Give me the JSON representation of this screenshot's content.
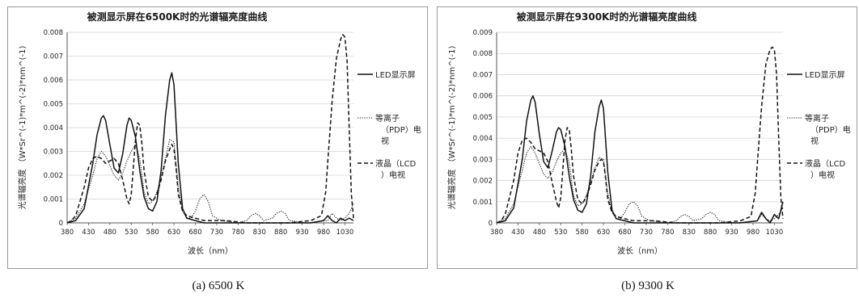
{
  "chart_data": [
    {
      "type": "line",
      "title": "被测显示屏在6500K时的光谱辐亮度曲线",
      "caption": "(a) 6500 K",
      "xlabel": "波长（nm）",
      "ylabel": "光谱辐亮度 （W*Sr^(-1)*m^(-2)*nm^(-1)",
      "xlim": [
        380,
        1050
      ],
      "ylim": [
        0,
        0.008
      ],
      "x_ticks": [
        "380",
        "430",
        "480",
        "530",
        "580",
        "630",
        "680",
        "730",
        "780",
        "830",
        "880",
        "930",
        "980",
        "1030"
      ],
      "y_ticks": [
        "0",
        "0.001",
        "0.002",
        "0.003",
        "0.004",
        "0.005",
        "0.006",
        "0.007",
        "0.008"
      ],
      "grid": "horizontal",
      "legend_position": "right",
      "series": [
        {
          "name": "LED显示屏",
          "style": "solid",
          "x": [
            380,
            400,
            420,
            440,
            450,
            460,
            465,
            470,
            480,
            490,
            500,
            510,
            520,
            525,
            530,
            540,
            550,
            560,
            570,
            580,
            590,
            600,
            610,
            620,
            625,
            630,
            640,
            650,
            660,
            680,
            700,
            750,
            800,
            850,
            900,
            950,
            980,
            990,
            1000,
            1010,
            1020,
            1030,
            1040,
            1050
          ],
          "y": [
            0,
            0.0001,
            0.0006,
            0.0025,
            0.0037,
            0.0044,
            0.0045,
            0.0043,
            0.0033,
            0.0023,
            0.0021,
            0.0029,
            0.0041,
            0.0044,
            0.0043,
            0.0036,
            0.0022,
            0.0011,
            0.0006,
            0.0005,
            0.0009,
            0.0022,
            0.0045,
            0.006,
            0.0063,
            0.0058,
            0.0025,
            0.0006,
            0.0002,
            0.0001,
            0,
            0,
            0,
            0,
            0,
            0,
            0.0001,
            0.0003,
            0.0001,
            0,
            0.0002,
            0.0001,
            0.0002,
            0.0001
          ]
        },
        {
          "name": "等离子（PDP）电视",
          "style": "dotted",
          "x": [
            380,
            400,
            420,
            440,
            450,
            460,
            470,
            480,
            490,
            500,
            510,
            520,
            530,
            540,
            550,
            560,
            570,
            580,
            590,
            600,
            610,
            620,
            630,
            640,
            650,
            660,
            670,
            680,
            690,
            700,
            710,
            720,
            740,
            780,
            800,
            810,
            820,
            830,
            840,
            860,
            870,
            880,
            890,
            900,
            940,
            990,
            1000,
            1010,
            1020,
            1030,
            1040,
            1050
          ],
          "y": [
            0,
            0.0002,
            0.0008,
            0.002,
            0.0027,
            0.003,
            0.0028,
            0.0024,
            0.002,
            0.0018,
            0.0021,
            0.0026,
            0.003,
            0.0033,
            0.0027,
            0.0013,
            0.0008,
            0.0009,
            0.0013,
            0.0019,
            0.0027,
            0.0035,
            0.0034,
            0.0015,
            0.0005,
            0.0002,
            0.0002,
            0.0005,
            0.001,
            0.0012,
            0.0009,
            0.0003,
            0.0001,
            0,
            0.0001,
            0.0003,
            0.0004,
            0.0003,
            0.0001,
            0.0002,
            0.0004,
            0.0005,
            0.0004,
            0.0001,
            0,
            0.0001,
            0.0004,
            0.0002,
            0.0001,
            0.0002,
            0.0004,
            0.0008
          ]
        },
        {
          "name": "液晶（LCD）电视",
          "style": "dashed",
          "x": [
            380,
            390,
            400,
            420,
            430,
            440,
            450,
            460,
            470,
            480,
            490,
            500,
            510,
            520,
            525,
            530,
            540,
            545,
            550,
            555,
            560,
            570,
            580,
            590,
            600,
            610,
            620,
            625,
            630,
            635,
            640,
            650,
            660,
            680,
            700,
            750,
            800,
            850,
            900,
            950,
            975,
            985,
            990,
            1000,
            1010,
            1020,
            1025,
            1030,
            1035,
            1040,
            1045,
            1050
          ],
          "y": [
            0,
            0.0001,
            0.0003,
            0.0015,
            0.0023,
            0.0027,
            0.0028,
            0.0027,
            0.0025,
            0.0026,
            0.0027,
            0.0025,
            0.0018,
            0.001,
            0.0008,
            0.0012,
            0.0035,
            0.0042,
            0.0041,
            0.0033,
            0.0022,
            0.0011,
            0.0009,
            0.0012,
            0.0018,
            0.0026,
            0.0031,
            0.0033,
            0.0031,
            0.0023,
            0.0012,
            0.0005,
            0.0003,
            0.0002,
            0.0001,
            0.0001,
            0,
            0,
            0,
            0.0001,
            0.0003,
            0.0013,
            0.0026,
            0.0051,
            0.0069,
            0.0077,
            0.0079,
            0.0078,
            0.0068,
            0.004,
            0.0012,
            0.0002
          ]
        }
      ]
    },
    {
      "type": "line",
      "title": "被测显示屏在9300K时的光谱辐亮度曲线",
      "caption": "(b) 9300 K",
      "xlabel": "波长（nm）",
      "ylabel": "光谱辐亮度 （W*Sr^(-1)*m^(-2)*nm^(-1)",
      "xlim": [
        380,
        1050
      ],
      "ylim": [
        0,
        0.009
      ],
      "x_ticks": [
        "380",
        "430",
        "480",
        "530",
        "580",
        "630",
        "680",
        "730",
        "780",
        "830",
        "880",
        "930",
        "980",
        "1030"
      ],
      "y_ticks": [
        "0",
        "0.001",
        "0.002",
        "0.003",
        "0.004",
        "0.005",
        "0.006",
        "0.007",
        "0.008",
        "0.009"
      ],
      "grid": "horizontal",
      "legend_position": "right",
      "series": [
        {
          "name": "LED显示屏",
          "style": "solid",
          "x": [
            380,
            400,
            420,
            440,
            450,
            460,
            465,
            470,
            480,
            490,
            500,
            510,
            520,
            525,
            530,
            540,
            550,
            560,
            570,
            580,
            590,
            600,
            610,
            620,
            625,
            630,
            640,
            650,
            660,
            680,
            700,
            750,
            800,
            850,
            900,
            950,
            990,
            1000,
            1010,
            1020,
            1030,
            1040,
            1050
          ],
          "y": [
            0,
            0.0001,
            0.0007,
            0.003,
            0.0048,
            0.0058,
            0.006,
            0.0057,
            0.0042,
            0.0029,
            0.0026,
            0.0034,
            0.0043,
            0.0045,
            0.0044,
            0.0036,
            0.0022,
            0.0011,
            0.0006,
            0.0005,
            0.0009,
            0.0022,
            0.0043,
            0.0055,
            0.0058,
            0.0054,
            0.0024,
            0.0006,
            0.0002,
            0.0001,
            0,
            0,
            0,
            0,
            0,
            0,
            0.0001,
            0.0005,
            0.0002,
            0,
            0.0004,
            0.0002,
            0.001
          ]
        },
        {
          "name": "等离子（PDP）电视",
          "style": "dotted",
          "x": [
            380,
            400,
            420,
            440,
            450,
            460,
            470,
            480,
            490,
            500,
            510,
            520,
            530,
            540,
            550,
            560,
            570,
            580,
            590,
            600,
            610,
            620,
            630,
            640,
            650,
            660,
            670,
            680,
            690,
            700,
            710,
            720,
            740,
            780,
            800,
            810,
            820,
            830,
            840,
            860,
            870,
            880,
            890,
            900,
            940,
            990,
            1000,
            1010,
            1020,
            1030,
            1040,
            1050
          ],
          "y": [
            0,
            0.0002,
            0.0009,
            0.0025,
            0.0033,
            0.0036,
            0.0033,
            0.0028,
            0.0023,
            0.0021,
            0.0024,
            0.0029,
            0.0033,
            0.0035,
            0.0028,
            0.0013,
            0.0008,
            0.0009,
            0.0013,
            0.0019,
            0.0026,
            0.0031,
            0.003,
            0.0014,
            0.0005,
            0.0002,
            0.0002,
            0.0005,
            0.0009,
            0.001,
            0.0008,
            0.0003,
            0.0001,
            0,
            0.0001,
            0.0003,
            0.0004,
            0.0003,
            0.0001,
            0.0002,
            0.0004,
            0.0005,
            0.0004,
            0.0001,
            0,
            0.0001,
            0.0004,
            0.0002,
            0.0001,
            0.0002,
            0.0004,
            0.0007
          ]
        },
        {
          "name": "液晶（LCD）电视",
          "style": "dashed",
          "x": [
            380,
            390,
            400,
            420,
            430,
            440,
            450,
            460,
            470,
            480,
            490,
            500,
            510,
            520,
            525,
            530,
            540,
            545,
            550,
            555,
            560,
            570,
            580,
            590,
            600,
            610,
            620,
            625,
            630,
            635,
            640,
            650,
            660,
            680,
            700,
            750,
            800,
            850,
            900,
            950,
            975,
            985,
            990,
            1000,
            1010,
            1020,
            1025,
            1030,
            1035,
            1040,
            1045,
            1050
          ],
          "y": [
            0,
            0.0001,
            0.0004,
            0.002,
            0.0033,
            0.0039,
            0.004,
            0.0038,
            0.0035,
            0.0034,
            0.0033,
            0.0029,
            0.0019,
            0.001,
            0.0007,
            0.0012,
            0.0039,
            0.0045,
            0.0044,
            0.0034,
            0.0022,
            0.0011,
            0.0009,
            0.0012,
            0.0018,
            0.0025,
            0.0029,
            0.003,
            0.0029,
            0.0021,
            0.0011,
            0.0005,
            0.0003,
            0.0002,
            0.0001,
            0.0001,
            0,
            0,
            0,
            0.0001,
            0.0003,
            0.0014,
            0.0028,
            0.0055,
            0.0075,
            0.0082,
            0.0083,
            0.0082,
            0.007,
            0.004,
            0.0012,
            0.0002
          ]
        }
      ]
    }
  ]
}
